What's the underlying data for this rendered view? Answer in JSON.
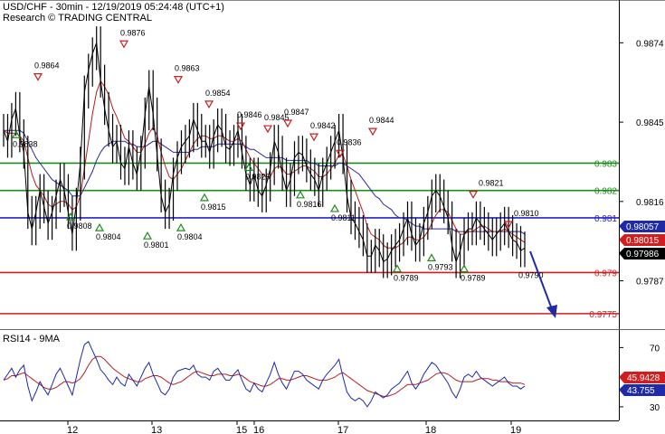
{
  "header": {
    "line1": "USD/CHF - 30min - 12/19/2019 05:24:48 (UTC+1)",
    "line2": "Research © TRADING CENTRAL"
  },
  "chart_data": [
    {
      "type": "line",
      "name": "price",
      "y_ticks": [
        "0.9874",
        "0.9845",
        "0.9816",
        "0.9787"
      ],
      "y_tick_values": [
        0.9874,
        0.9845,
        0.9816,
        0.9787
      ],
      "ylim": [
        0.977,
        0.9887
      ],
      "x_tick_labels": [
        "12",
        "13",
        "15",
        "16",
        "17",
        "18",
        "19"
      ],
      "grid": false,
      "levels": [
        {
          "value": 0.983,
          "label": "0.983",
          "color": "#1e8c1e"
        },
        {
          "value": 0.982,
          "label": "0.982",
          "color": "#1e8c1e"
        },
        {
          "value": 0.981,
          "label": "0.981",
          "color": "#2424c8"
        },
        {
          "value": 0.979,
          "label": "0.979",
          "color": "#d21e1e"
        },
        {
          "value": 0.9775,
          "label": "0.9775",
          "color": "#d21e1e"
        }
      ],
      "badges": [
        {
          "label": "0.98057",
          "bg": "#1e2aa6",
          "fg": "#ffffff"
        },
        {
          "label": "0.98015",
          "bg": "#d21e1e",
          "fg": "#ffffff"
        },
        {
          "label": "0.97986",
          "bg": "#000000",
          "fg": "#ffffff"
        }
      ],
      "highs": [
        {
          "label": "0.9864",
          "value": 0.9864
        },
        {
          "label": "0.9876",
          "value": 0.9876
        },
        {
          "label": "0.9863",
          "value": 0.9863
        },
        {
          "label": "0.9854",
          "value": 0.9854
        },
        {
          "label": "0.9846",
          "value": 0.9846
        },
        {
          "label": "0.9845",
          "value": 0.9845
        },
        {
          "label": "0.9847",
          "value": 0.9847
        },
        {
          "label": "0.9842",
          "value": 0.9842
        },
        {
          "label": "0.9836",
          "value": 0.9836
        },
        {
          "label": "0.9844",
          "value": 0.9844
        },
        {
          "label": "0.9821",
          "value": 0.9821
        },
        {
          "label": "0.9810",
          "value": 0.981
        }
      ],
      "lows": [
        {
          "label": "0.9838",
          "value": 0.9838
        },
        {
          "label": "0.9808",
          "value": 0.9808
        },
        {
          "label": "0.9804",
          "value": 0.9804
        },
        {
          "label": "0.9801",
          "value": 0.9801
        },
        {
          "label": "0.9804",
          "value": 0.9804
        },
        {
          "label": "0.9815",
          "value": 0.9815
        },
        {
          "label": "0.9826",
          "value": 0.9826
        },
        {
          "label": "0.9816",
          "value": 0.9816
        },
        {
          "label": "0.9811",
          "value": 0.9811
        },
        {
          "label": "0.9789",
          "value": 0.9789
        },
        {
          "label": "0.9793",
          "value": 0.9793
        },
        {
          "label": "0.9789",
          "value": 0.9789
        },
        {
          "label": "0.9790",
          "value": 0.979
        }
      ],
      "price": [
        0.9842,
        0.9838,
        0.9846,
        0.985,
        0.984,
        0.9834,
        0.9812,
        0.9806,
        0.9812,
        0.982,
        0.9814,
        0.9808,
        0.9812,
        0.9818,
        0.9824,
        0.982,
        0.9812,
        0.9804,
        0.9815,
        0.983,
        0.9856,
        0.9864,
        0.987,
        0.9874,
        0.986,
        0.985,
        0.9842,
        0.9836,
        0.9838,
        0.983,
        0.9828,
        0.9836,
        0.983,
        0.9826,
        0.9834,
        0.9848,
        0.9858,
        0.9848,
        0.9833,
        0.9818,
        0.9812,
        0.9815,
        0.9826,
        0.9832,
        0.9836,
        0.9838,
        0.984,
        0.9846,
        0.9842,
        0.9838,
        0.9838,
        0.9834,
        0.984,
        0.9844,
        0.9842,
        0.9836,
        0.9835,
        0.9838,
        0.9842,
        0.9834,
        0.9826,
        0.9822,
        0.9826,
        0.982,
        0.9818,
        0.9822,
        0.9828,
        0.9838,
        0.9834,
        0.9826,
        0.982,
        0.9824,
        0.9832,
        0.9834,
        0.9833,
        0.9829,
        0.9826,
        0.9824,
        0.982,
        0.9826,
        0.983,
        0.9834,
        0.9838,
        0.9842,
        0.9832,
        0.9818,
        0.981,
        0.9808,
        0.9805,
        0.9802,
        0.9796,
        0.9796,
        0.98,
        0.9798,
        0.9794,
        0.9795,
        0.9798,
        0.98,
        0.9802,
        0.9806,
        0.981,
        0.9804,
        0.98,
        0.9802,
        0.9808,
        0.9812,
        0.9818,
        0.982,
        0.9818,
        0.9814,
        0.981,
        0.98,
        0.9794,
        0.9798,
        0.9804,
        0.9806,
        0.9806,
        0.981,
        0.9808,
        0.9806,
        0.9804,
        0.9802,
        0.9804,
        0.9806,
        0.9808,
        0.9805,
        0.9802,
        0.9801,
        0.9798,
        0.9799
      ],
      "ma_fast": [
        0.9842,
        0.9841,
        0.9841,
        0.9841,
        0.984,
        0.9838,
        0.9832,
        0.9826,
        0.9822,
        0.982,
        0.9818,
        0.9815,
        0.9814,
        0.9815,
        0.9816,
        0.9816,
        0.9815,
        0.9813,
        0.9814,
        0.9818,
        0.9828,
        0.9838,
        0.9848,
        0.9856,
        0.986,
        0.9858,
        0.9855,
        0.985,
        0.9847,
        0.9843,
        0.9839,
        0.9838,
        0.9836,
        0.9834,
        0.9834,
        0.9837,
        0.9841,
        0.9843,
        0.984,
        0.9834,
        0.9829,
        0.9825,
        0.9824,
        0.9826,
        0.9828,
        0.9831,
        0.9834,
        0.9837,
        0.9839,
        0.984,
        0.984,
        0.9839,
        0.9839,
        0.984,
        0.984,
        0.9839,
        0.9838,
        0.9838,
        0.9839,
        0.9838,
        0.9835,
        0.9832,
        0.983,
        0.9828,
        0.9826,
        0.9825,
        0.9825,
        0.9828,
        0.9829,
        0.9828,
        0.9826,
        0.9826,
        0.9827,
        0.9828,
        0.9829,
        0.9829,
        0.9828,
        0.9827,
        0.9825,
        0.9825,
        0.9826,
        0.9828,
        0.983,
        0.9833,
        0.9833,
        0.9829,
        0.9824,
        0.982,
        0.9816,
        0.9812,
        0.9807,
        0.9804,
        0.9803,
        0.9802,
        0.98,
        0.9799,
        0.9799,
        0.9799,
        0.98,
        0.9801,
        0.9803,
        0.9803,
        0.9802,
        0.9802,
        0.9803,
        0.9805,
        0.9808,
        0.9811,
        0.9813,
        0.9813,
        0.9812,
        0.9809,
        0.9806,
        0.9804,
        0.9804,
        0.9805,
        0.9805,
        0.9806,
        0.9807,
        0.9807,
        0.9806,
        0.9805,
        0.9805,
        0.9805,
        0.9806,
        0.9805,
        0.9804,
        0.9803,
        0.9802,
        0.9801
      ],
      "ma_slow": [
        0.9842,
        0.9842,
        0.9842,
        0.9842,
        0.9842,
        0.9841,
        0.9838,
        0.9835,
        0.9832,
        0.983,
        0.9828,
        0.9826,
        0.9824,
        0.9823,
        0.9822,
        0.9821,
        0.982,
        0.9818,
        0.9818,
        0.9818,
        0.9821,
        0.9824,
        0.9827,
        0.9831,
        0.9834,
        0.9836,
        0.9837,
        0.9838,
        0.9838,
        0.9838,
        0.9838,
        0.9837,
        0.9837,
        0.9836,
        0.9836,
        0.9836,
        0.9837,
        0.9838,
        0.9838,
        0.9837,
        0.9836,
        0.9835,
        0.9834,
        0.9834,
        0.9834,
        0.9834,
        0.9834,
        0.9835,
        0.9835,
        0.9836,
        0.9836,
        0.9836,
        0.9836,
        0.9837,
        0.9837,
        0.9837,
        0.9837,
        0.9837,
        0.9837,
        0.9837,
        0.9836,
        0.9835,
        0.9835,
        0.9834,
        0.9833,
        0.9832,
        0.9832,
        0.9832,
        0.9832,
        0.9832,
        0.9831,
        0.9831,
        0.9831,
        0.9831,
        0.9831,
        0.9831,
        0.983,
        0.983,
        0.9829,
        0.9829,
        0.9829,
        0.9829,
        0.9829,
        0.983,
        0.983,
        0.9829,
        0.9828,
        0.9827,
        0.9826,
        0.9824,
        0.9822,
        0.982,
        0.9818,
        0.9817,
        0.9815,
        0.9814,
        0.9813,
        0.9811,
        0.981,
        0.981,
        0.9809,
        0.9808,
        0.9807,
        0.9807,
        0.9806,
        0.9806,
        0.9806,
        0.9806,
        0.9806,
        0.9806,
        0.9806,
        0.9806,
        0.9805,
        0.9805,
        0.9805,
        0.9805,
        0.9805,
        0.9805,
        0.9805,
        0.9805,
        0.9805,
        0.9805,
        0.9805,
        0.9805,
        0.9805,
        0.9805,
        0.9805,
        0.9805,
        0.9805,
        0.9804
      ]
    },
    {
      "type": "line",
      "name": "RSI14 - 9MA",
      "title": "RSI14 - 9MA",
      "y_ticks": [
        "70",
        "30"
      ],
      "y_tick_values": [
        70,
        30
      ],
      "ylim": [
        22,
        80
      ],
      "badges": [
        {
          "label": "45.9428",
          "bg": "#d21e1e",
          "fg": "#ffffff"
        },
        {
          "label": "43.755",
          "bg": "#1e2aa6",
          "fg": "#ffffff"
        }
      ],
      "rsi": [
        48,
        52,
        56,
        50,
        55,
        58,
        44,
        34,
        40,
        47,
        42,
        38,
        45,
        52,
        56,
        50,
        44,
        38,
        50,
        62,
        72,
        74,
        68,
        62,
        55,
        52,
        48,
        45,
        50,
        46,
        44,
        52,
        48,
        44,
        50,
        56,
        60,
        52,
        46,
        40,
        38,
        42,
        50,
        54,
        55,
        56,
        55,
        58,
        52,
        50,
        50,
        48,
        54,
        56,
        52,
        48,
        48,
        52,
        55,
        48,
        42,
        40,
        46,
        42,
        40,
        46,
        52,
        60,
        52,
        46,
        42,
        48,
        54,
        54,
        52,
        48,
        46,
        44,
        42,
        48,
        52,
        55,
        58,
        62,
        50,
        40,
        36,
        34,
        36,
        34,
        30,
        34,
        40,
        38,
        36,
        38,
        42,
        44,
        46,
        50,
        54,
        46,
        42,
        46,
        52,
        56,
        60,
        58,
        54,
        50,
        46,
        40,
        36,
        42,
        50,
        52,
        50,
        54,
        50,
        48,
        46,
        44,
        46,
        48,
        50,
        46,
        44,
        44,
        42,
        44
      ],
      "ma": [
        48,
        49,
        51,
        51,
        52,
        53,
        51,
        49,
        47,
        45,
        43,
        42,
        42,
        43,
        45,
        47,
        47,
        46,
        47,
        49,
        53,
        58,
        62,
        64,
        64,
        62,
        59,
        56,
        54,
        52,
        50,
        49,
        48,
        47,
        47,
        49,
        50,
        51,
        51,
        50,
        48,
        46,
        45,
        46,
        47,
        49,
        51,
        53,
        54,
        53,
        52,
        51,
        51,
        52,
        52,
        52,
        51,
        51,
        52,
        51,
        49,
        47,
        46,
        45,
        44,
        44,
        45,
        47,
        49,
        49,
        48,
        48,
        49,
        50,
        51,
        51,
        50,
        49,
        48,
        48,
        48,
        49,
        50,
        52,
        53,
        51,
        49,
        47,
        45,
        43,
        41,
        40,
        39,
        38,
        37,
        37,
        38,
        39,
        41,
        43,
        45,
        45,
        45,
        46,
        47,
        48,
        50,
        52,
        53,
        53,
        52,
        50,
        48,
        47,
        47,
        47,
        47,
        48,
        49,
        49,
        49,
        48,
        48,
        47,
        47,
        47,
        46,
        46,
        46,
        45
      ]
    }
  ]
}
